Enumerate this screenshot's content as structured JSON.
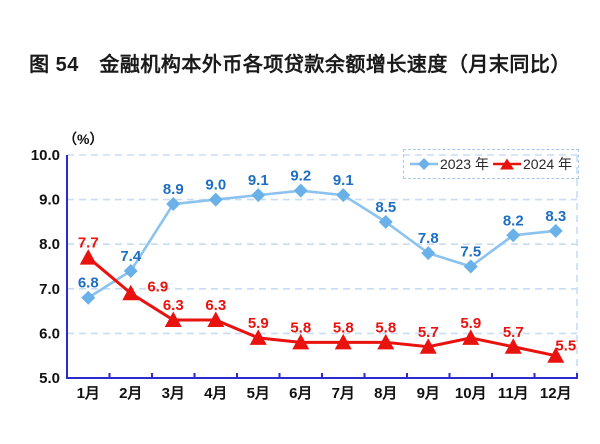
{
  "figure": {
    "title": "图 54　金融机构本外币各项贷款余额增长速度（月末同比）",
    "unit_label": "（%）"
  },
  "legend": {
    "position": "top-right",
    "items": [
      {
        "label": "2023 年",
        "marker": "diamond",
        "color": "#69b1e8"
      },
      {
        "label": "2024 年",
        "marker": "triangle",
        "color": "#e8120f"
      }
    ]
  },
  "chart_data": {
    "type": "line",
    "title": "图 54　金融机构本外币各项贷款余额增长速度（月末同比）",
    "categories": [
      "1月",
      "2月",
      "3月",
      "4月",
      "5月",
      "6月",
      "7月",
      "8月",
      "9月",
      "10月",
      "11月",
      "12月"
    ],
    "series": [
      {
        "name": "2023 年",
        "marker": "diamond",
        "color": "#8cc3ee",
        "marker_color": "#69b1e8",
        "label_color": "#1e6fc2",
        "values": [
          6.8,
          7.4,
          8.9,
          9.0,
          9.1,
          9.2,
          9.1,
          8.5,
          7.8,
          7.5,
          8.2,
          8.3
        ]
      },
      {
        "name": "2024 年",
        "marker": "triangle",
        "color": "#e8120f",
        "marker_color": "#e8120f",
        "label_color": "#e8120f",
        "values": [
          7.7,
          6.9,
          6.3,
          6.3,
          5.9,
          5.8,
          5.8,
          5.8,
          5.7,
          5.9,
          5.7,
          5.5
        ]
      }
    ],
    "xlabel": "",
    "ylabel": "（%）",
    "ylim": [
      5.0,
      10.0
    ],
    "yticks": [
      "10.0",
      "9.0",
      "8.0",
      "7.0",
      "6.0",
      "5.0"
    ],
    "grid": "horizontal-dashed",
    "legend_position": "top-right",
    "axis_color": "#2b2bd0",
    "grid_color": "#c8ddf4"
  }
}
